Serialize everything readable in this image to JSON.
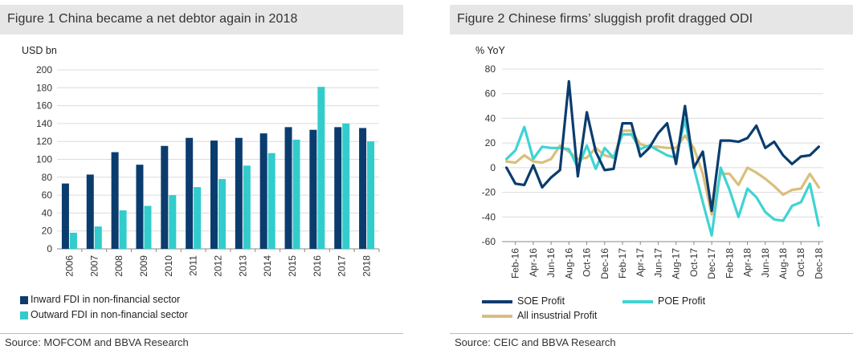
{
  "panel1": {
    "title": "Figure 1 China became a net debtor again in 2018",
    "source": "Source: MOFCOM and BBVA Research",
    "unit": "USD bn"
  },
  "panel2": {
    "title": "Figure 2 Chinese firms’ sluggish profit dragged ODI",
    "source": "Source:  CEIC and BBVA Research",
    "unit": "% YoY"
  },
  "colors": {
    "inward": "#0b3c6e",
    "outward": "#33cccc",
    "soe": "#0b3c6e",
    "poe": "#40d3d3",
    "all": "#d9bf7a",
    "grid": "#dcdcdc",
    "title_bg": "#e6e6e6"
  },
  "chart_data": [
    {
      "type": "bar",
      "ylabel": "USD bn",
      "ylim": [
        0,
        200
      ],
      "yticks": [
        0,
        20,
        40,
        60,
        80,
        100,
        120,
        140,
        160,
        180,
        200
      ],
      "categories": [
        "2006",
        "2007",
        "2008",
        "2009",
        "2010",
        "2011",
        "2012",
        "2013",
        "2014",
        "2015",
        "2016",
        "2017",
        "2018"
      ],
      "series": [
        {
          "name": "Inward FDI in non-financial sector",
          "values": [
            73,
            83,
            108,
            94,
            115,
            124,
            121,
            124,
            129,
            136,
            133,
            136,
            135
          ]
        },
        {
          "name": "Outward FDI in non-financial sector",
          "values": [
            18,
            25,
            43,
            48,
            60,
            69,
            78,
            93,
            107,
            122,
            181,
            140,
            120
          ]
        }
      ],
      "legend": "bottom"
    },
    {
      "type": "line",
      "ylabel": "% YoY",
      "ylim": [
        -60,
        80
      ],
      "yticks": [
        -60,
        -40,
        -20,
        0,
        20,
        40,
        60,
        80
      ],
      "x": [
        "Jan-16",
        "Feb-16",
        "Mar-16",
        "Apr-16",
        "May-16",
        "Jun-16",
        "Jul-16",
        "Aug-16",
        "Sep-16",
        "Oct-16",
        "Nov-16",
        "Dec-16",
        "Jan-17",
        "Feb-17",
        "Mar-17",
        "Apr-17",
        "May-17",
        "Jun-17",
        "Jul-17",
        "Aug-17",
        "Sep-17",
        "Oct-17",
        "Nov-17",
        "Dec-17",
        "Jan-18",
        "Feb-18",
        "Mar-18",
        "Apr-18",
        "May-18",
        "Jun-18",
        "Jul-18",
        "Aug-18",
        "Sep-18",
        "Oct-18",
        "Nov-18",
        "Dec-18"
      ],
      "xticklabels": [
        "Feb-16",
        "Apr-16",
        "Jun-16",
        "Aug-16",
        "Oct-16",
        "Dec-16",
        "Feb-17",
        "Apr-17",
        "Jun-17",
        "Aug-17",
        "Oct-17",
        "Dec-17",
        "Feb-18",
        "Apr-18",
        "Jun-18",
        "Aug-18",
        "Oct-18",
        "Dec-18"
      ],
      "series": [
        {
          "name": "SOE Profit",
          "values": [
            0,
            -13,
            -14,
            2,
            -16,
            -8,
            -2,
            70,
            -7,
            45,
            13,
            -2,
            -1,
            36,
            36,
            9,
            16,
            28,
            36,
            3,
            50,
            0,
            13,
            -35,
            22,
            22,
            21,
            24,
            34,
            16,
            21,
            10,
            3,
            9,
            10,
            17
          ]
        },
        {
          "name": "POE Profit",
          "values": [
            7,
            14,
            33,
            7,
            17,
            16,
            16,
            15,
            0,
            18,
            -1,
            16,
            8,
            27,
            27,
            15,
            18,
            14,
            10,
            8,
            39,
            0,
            -28,
            -55,
            0,
            -18,
            -40,
            -17,
            -24,
            -36,
            -42,
            -43,
            -31,
            -28,
            -13,
            -47
          ]
        },
        {
          "name": "All insustrial Profit",
          "values": [
            5,
            4,
            10,
            5,
            4,
            7,
            18,
            13,
            7,
            8,
            16,
            10,
            8,
            30,
            30,
            19,
            17,
            17,
            16,
            16,
            26,
            16,
            -5,
            -38,
            -5,
            -5,
            -14,
            0,
            -4,
            -9,
            -15,
            -22,
            -18,
            -17,
            -5,
            -16
          ]
        }
      ],
      "legend": "bottom"
    }
  ]
}
